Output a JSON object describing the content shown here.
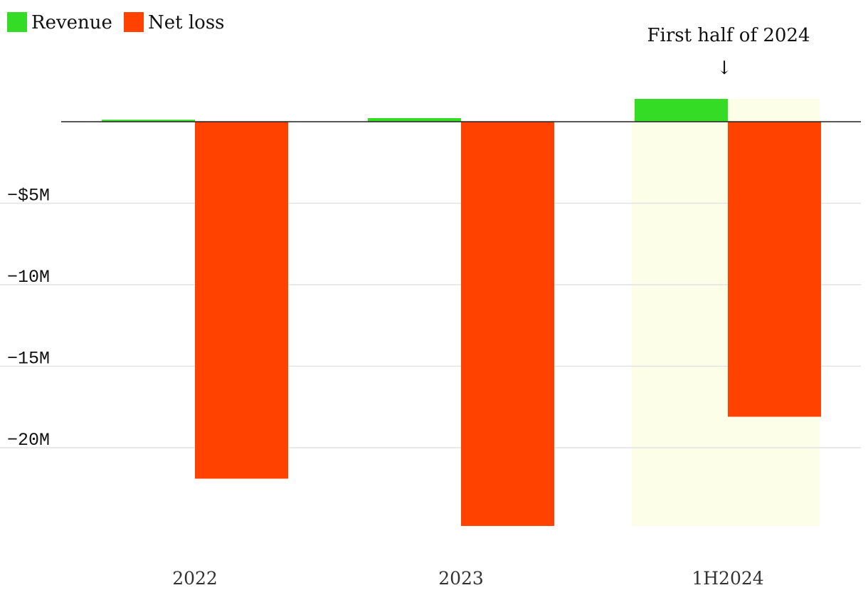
{
  "chart_data": {
    "type": "bar",
    "categories": [
      "2022",
      "2023",
      "1H2024"
    ],
    "series": [
      {
        "name": "Revenue",
        "color": "#34dc25",
        "values": [
          0.12,
          0.22,
          1.4
        ]
      },
      {
        "name": "Net loss",
        "color": "#ff4200",
        "values": [
          -21.9,
          -24.8,
          -18.1
        ]
      }
    ],
    "ylim": [
      -24.8,
      1.4
    ],
    "yticks": [
      -5,
      -10,
      -15,
      -20
    ],
    "ytick_labels": [
      "−$5M",
      "−10M",
      "−15M",
      "−20M"
    ],
    "grid": true,
    "legend": "top-left",
    "annotation": {
      "text": "First half of 2024",
      "arrow": "↓",
      "target_category": "1H2024",
      "highlight_color": "#fdfee8"
    }
  }
}
